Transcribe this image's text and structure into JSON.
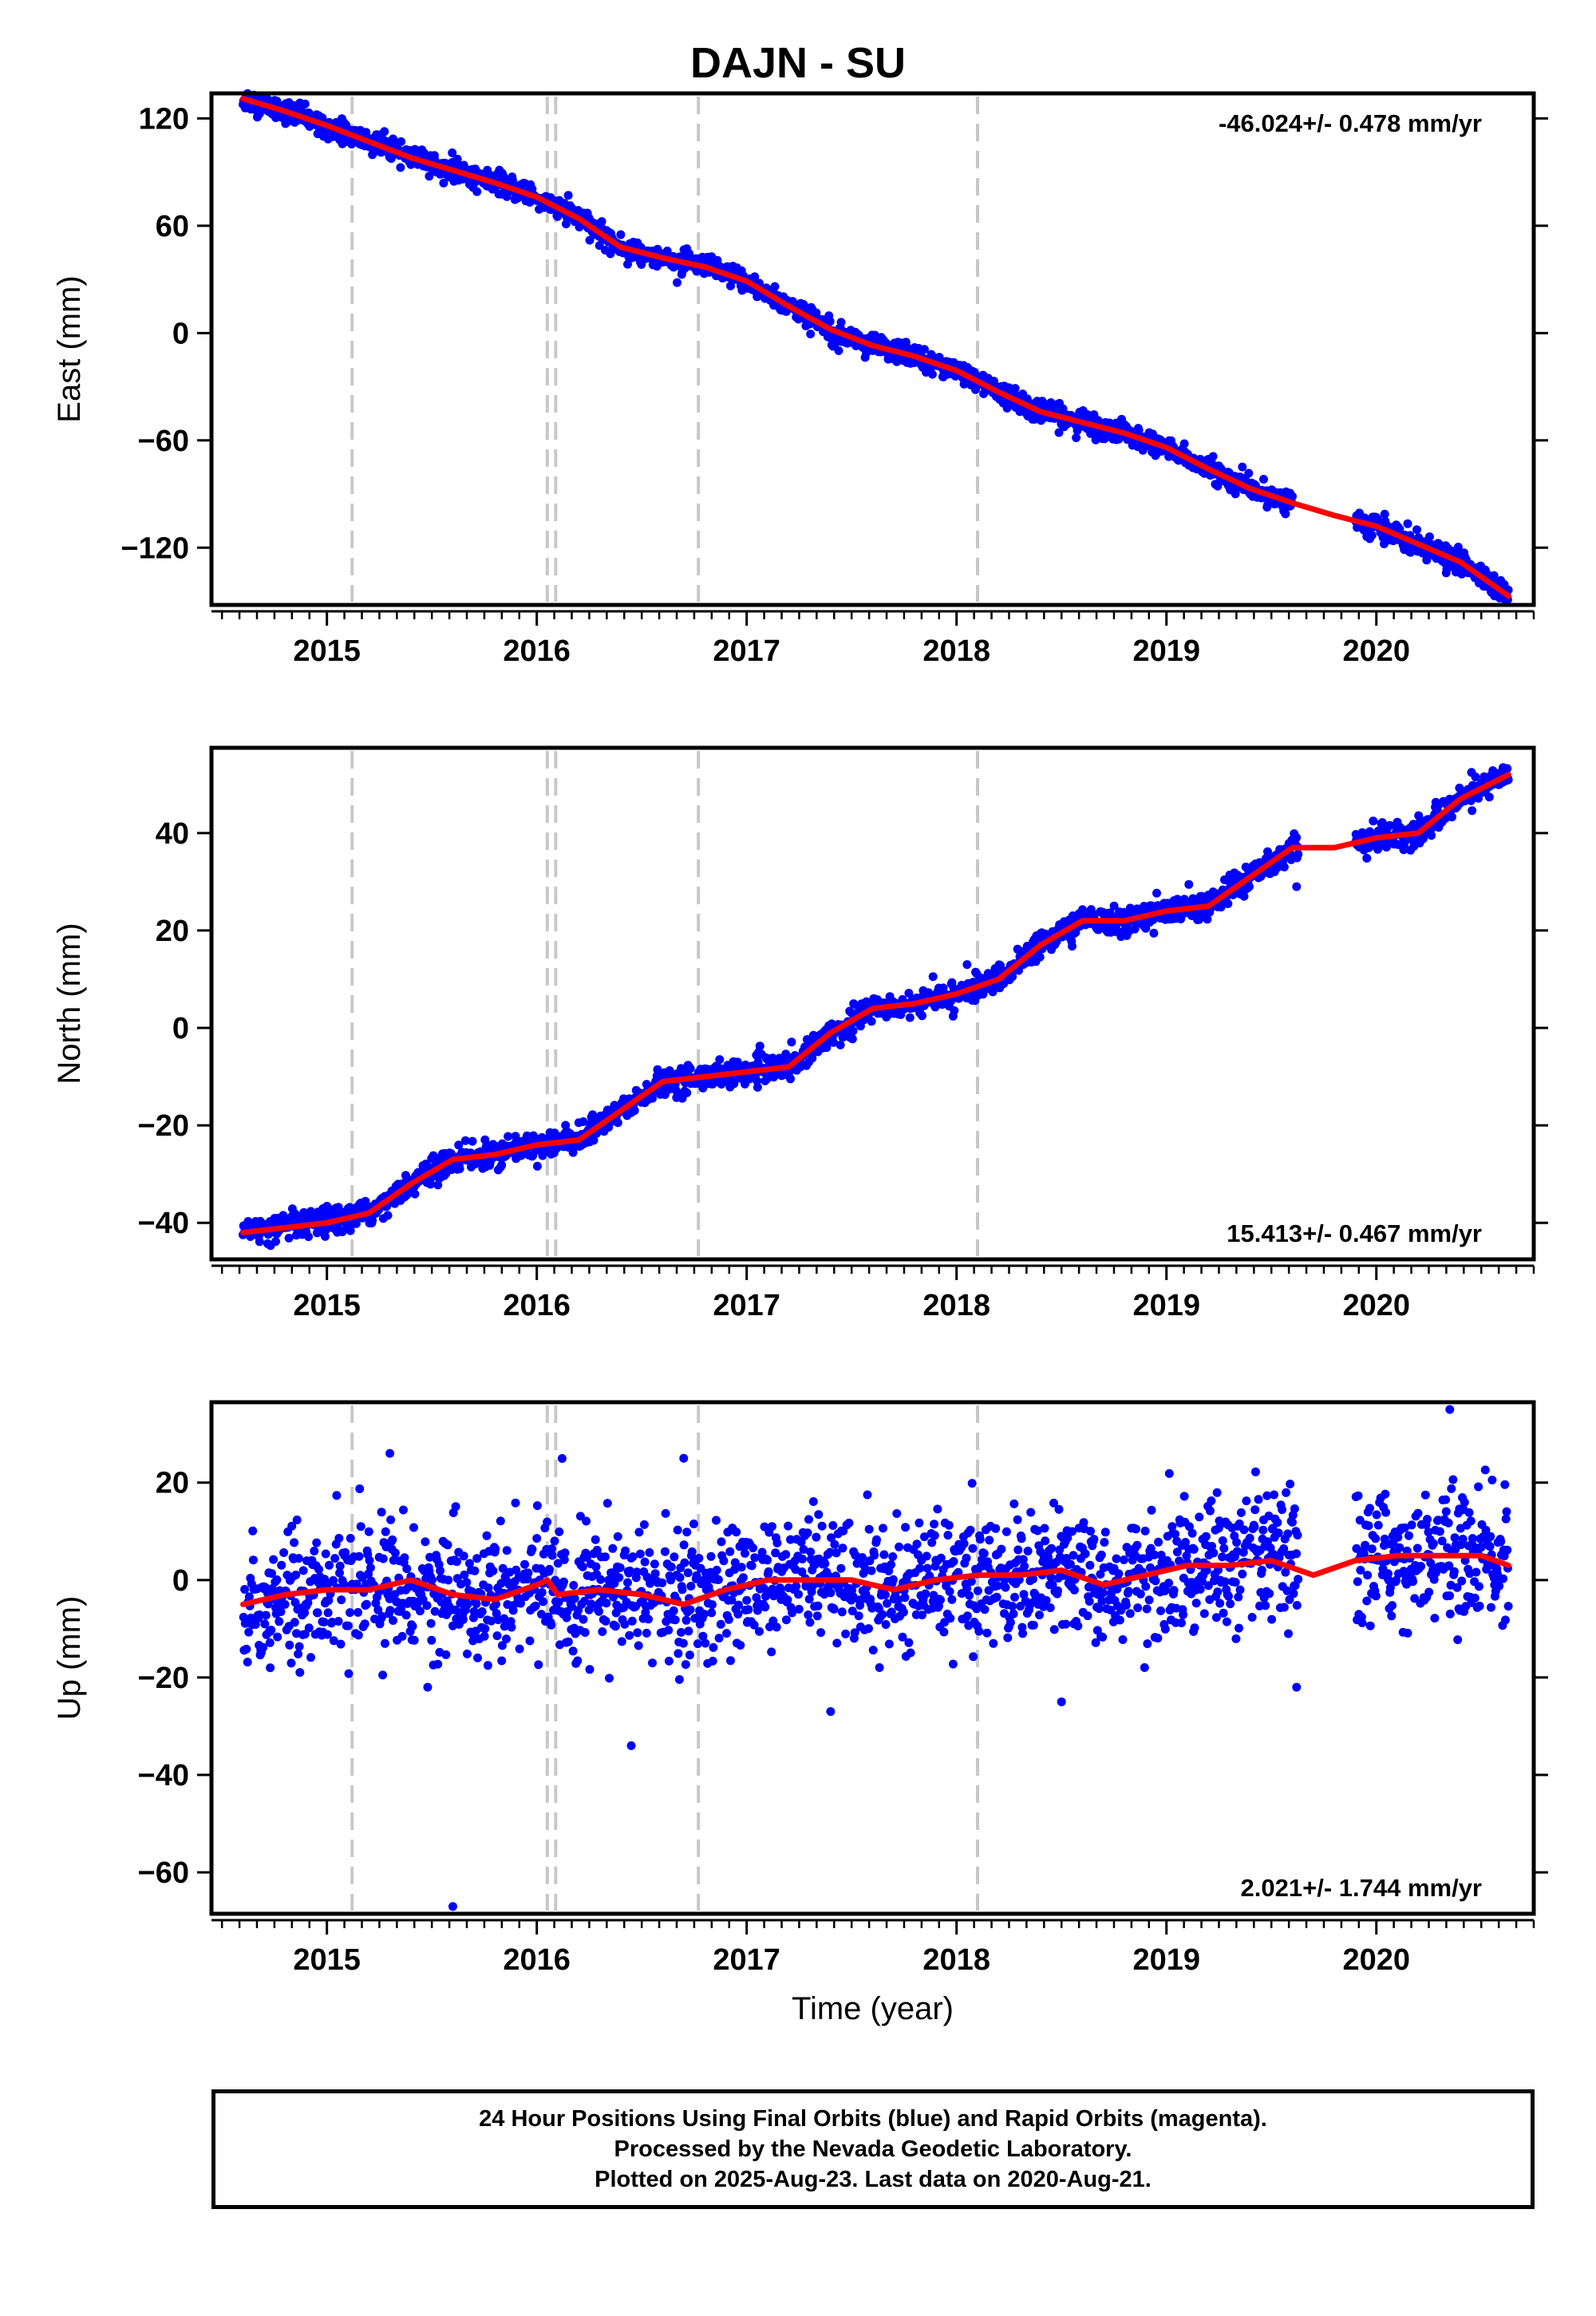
{
  "title": "DAJN - SU",
  "colors": {
    "points": "#0000ff",
    "fit": "#ff0000",
    "events": "#c8c8c8",
    "frame": "#000000"
  },
  "chart_data": [
    {
      "type": "scatter",
      "component": "East",
      "ylabel": "East (mm)",
      "xlabel": "",
      "xlim": [
        2014.45,
        2020.75
      ],
      "ylim": [
        -152,
        134
      ],
      "yticks": [
        120,
        60,
        0,
        -60,
        -120
      ],
      "xticks": [
        2015,
        2016,
        2017,
        2018,
        2019,
        2020
      ],
      "tick_labels_x": [
        "2015",
        "2016",
        "2017",
        "2018",
        "2019",
        "2020"
      ],
      "tick_labels_y": [
        "120",
        "60",
        "0",
        "−60",
        "−120"
      ],
      "velocity_label": "-46.024+/- 0.478 mm/yr",
      "velocity_position": "top-right",
      "fit_series": {
        "x": [
          2014.6,
          2014.8,
          2015.0,
          2015.2,
          2015.4,
          2015.6,
          2015.8,
          2016.0,
          2016.2,
          2016.4,
          2016.6,
          2016.8,
          2017.0,
          2017.2,
          2017.4,
          2017.6,
          2017.8,
          2018.0,
          2018.2,
          2018.4,
          2018.6,
          2018.8,
          2019.0,
          2019.2,
          2019.4,
          2019.6,
          2019.8,
          2020.0,
          2020.2,
          2020.4,
          2020.63
        ],
        "y": [
          131,
          124,
          116,
          107,
          98,
          91,
          84,
          76,
          64,
          48,
          42,
          37,
          29,
          15,
          2,
          -7,
          -13,
          -21,
          -33,
          -44,
          -50,
          -56,
          -64,
          -76,
          -87,
          -95,
          -102,
          -108,
          -118,
          -128,
          -147
        ]
      },
      "points_coverage": [
        [
          2014.6,
          2019.6
        ],
        [
          2019.9,
          2020.63
        ]
      ],
      "points_scatter_mm": 3,
      "outliers": [
        [
          2016.15,
          77
        ],
        [
          2017.45,
          6
        ],
        [
          2016.4,
          55
        ]
      ]
    },
    {
      "type": "scatter",
      "component": "North",
      "ylabel": "North (mm)",
      "xlabel": "",
      "xlim": [
        2014.45,
        2020.75
      ],
      "ylim": [
        -47.5,
        57.5
      ],
      "yticks": [
        40,
        20,
        0,
        -20,
        -40
      ],
      "xticks": [
        2015,
        2016,
        2017,
        2018,
        2019,
        2020
      ],
      "tick_labels_x": [
        "2015",
        "2016",
        "2017",
        "2018",
        "2019",
        "2020"
      ],
      "tick_labels_y": [
        "40",
        "20",
        "0",
        "−20",
        "−40"
      ],
      "velocity_label": "15.413+/- 0.467 mm/yr",
      "velocity_position": "bottom-right",
      "fit_series": {
        "x": [
          2014.6,
          2014.8,
          2015.0,
          2015.2,
          2015.4,
          2015.6,
          2015.8,
          2016.0,
          2016.2,
          2016.4,
          2016.6,
          2016.8,
          2017.0,
          2017.2,
          2017.4,
          2017.6,
          2017.8,
          2018.0,
          2018.2,
          2018.4,
          2018.6,
          2018.8,
          2019.0,
          2019.2,
          2019.4,
          2019.6,
          2019.8,
          2020.0,
          2020.2,
          2020.4,
          2020.63
        ],
        "y": [
          -42,
          -41,
          -40,
          -38,
          -32,
          -27,
          -26,
          -24,
          -23,
          -17,
          -11,
          -10,
          -9,
          -8,
          -1,
          4,
          5,
          7,
          10,
          17,
          22,
          22,
          24,
          25,
          31,
          37,
          37,
          39,
          40,
          47,
          52
        ]
      },
      "points_coverage": [
        [
          2014.6,
          2019.63
        ],
        [
          2019.9,
          2020.63
        ]
      ],
      "points_scatter_mm": 1.3,
      "outliers": [
        [
          2018.05,
          13
        ],
        [
          2019.62,
          29
        ]
      ]
    },
    {
      "type": "scatter",
      "component": "Up",
      "ylabel": "Up (mm)",
      "xlabel": "Time (year)",
      "xlim": [
        2014.45,
        2020.75
      ],
      "ylim": [
        -68.5,
        36.5
      ],
      "yticks": [
        20,
        0,
        -20,
        -40,
        -60
      ],
      "xticks": [
        2015,
        2016,
        2017,
        2018,
        2019,
        2020
      ],
      "tick_labels_x": [
        "2015",
        "2016",
        "2017",
        "2018",
        "2019",
        "2020"
      ],
      "tick_labels_y": [
        "20",
        "0",
        "−20",
        "−40",
        "−60"
      ],
      "velocity_label": "2.021+/- 1.744 mm/yr",
      "velocity_position": "bottom-right",
      "fit_series": {
        "x": [
          2014.6,
          2014.8,
          2015.0,
          2015.2,
          2015.4,
          2015.6,
          2015.8,
          2016.0,
          2016.05,
          2016.1,
          2016.3,
          2016.5,
          2016.7,
          2016.9,
          2017.1,
          2017.3,
          2017.5,
          2017.7,
          2017.9,
          2018.1,
          2018.3,
          2018.5,
          2018.7,
          2018.9,
          2019.1,
          2019.3,
          2019.5,
          2019.7,
          2019.9,
          2020.1,
          2020.3,
          2020.5,
          2020.63
        ],
        "y": [
          -5,
          -3,
          -2,
          -2,
          0,
          -3,
          -4,
          -1,
          0,
          -3,
          -2,
          -3,
          -5,
          -2,
          0,
          0,
          0,
          -2,
          0,
          1,
          1,
          2,
          -1,
          1,
          3,
          3,
          4,
          1,
          4,
          5,
          5,
          5,
          3
        ]
      },
      "points_coverage": [
        [
          2014.6,
          2019.63
        ],
        [
          2019.9,
          2020.63
        ]
      ],
      "points_scatter_mm": 6.5,
      "outliers": [
        [
          2015.6,
          -67
        ],
        [
          2016.45,
          -34
        ],
        [
          2016.7,
          25
        ],
        [
          2015.3,
          26
        ],
        [
          2020.35,
          35
        ],
        [
          2017.4,
          -27
        ],
        [
          2018.5,
          -25
        ],
        [
          2019.62,
          -22
        ],
        [
          2014.73,
          -18
        ],
        [
          2015.48,
          -22
        ]
      ]
    }
  ],
  "event_lines_x": [
    2015.12,
    2016.05,
    2016.09,
    2016.77,
    2018.1
  ],
  "footer": {
    "line1": "24 Hour Positions Using Final Orbits (blue) and Rapid Orbits (magenta).",
    "line2": "Processed by the Nevada Geodetic Laboratory.",
    "line3": "Plotted on 2025-Aug-23. Last data on 2020-Aug-21."
  }
}
